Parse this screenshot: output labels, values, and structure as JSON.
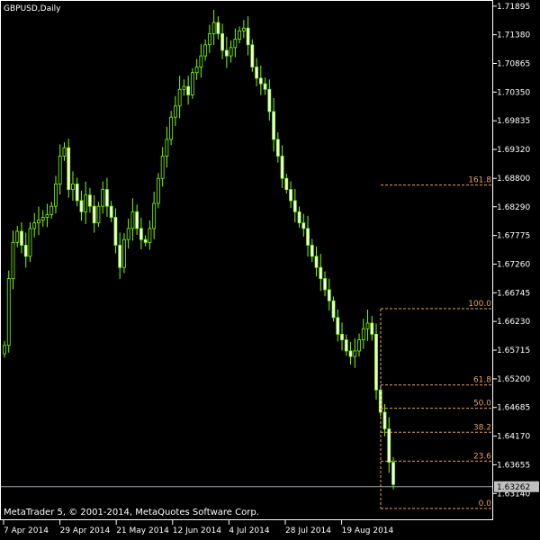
{
  "window": {
    "title": "GBPUSD,Daily"
  },
  "footer": {
    "copyright": "MetaTrader 5, © 2001-2014, MetaQuotes Software Corp."
  },
  "colors": {
    "background": "#000000",
    "candle_up_body": "#000000",
    "candle_down_body": "#ffffff",
    "candle_line": "#7cfc00",
    "fib_line": "#e8a060",
    "axis": "#ffffff",
    "price_line": "#a0a8b0",
    "price_label_bg": "#c0c0c0"
  },
  "chart_data": {
    "type": "candlestick",
    "title": "GBPUSD,Daily",
    "ylim": [
      1.6287,
      1.7194
    ],
    "y_ticks": [
      "1.71895",
      "1.71380",
      "1.70865",
      "1.70350",
      "1.69835",
      "1.69320",
      "1.68800",
      "1.68290",
      "1.67775",
      "1.67260",
      "1.66745",
      "1.66230",
      "1.65715",
      "1.65200",
      "1.64685",
      "1.64170",
      "1.63655",
      "1.63140"
    ],
    "x_ticks": [
      "7 Apr 2014",
      "29 Apr 2014",
      "21 May 2014",
      "12 Jun 2014",
      "4 Jul 2014",
      "28 Jul 2014",
      "19 Aug 2014"
    ],
    "current_price": "1.63262",
    "fibonacci": {
      "levels": [
        {
          "label": "161.8",
          "price": 1.6868
        },
        {
          "label": "100.0",
          "price": 1.6646
        },
        {
          "label": "61.8",
          "price": 1.6509
        },
        {
          "label": "50.0",
          "price": 1.6467
        },
        {
          "label": "38.2",
          "price": 1.6424
        },
        {
          "label": "23.6",
          "price": 1.6372
        },
        {
          "label": "0.0",
          "price": 1.6287
        }
      ]
    },
    "close_path": [
      1.658,
      1.67,
      1.6765,
      1.6785,
      1.676,
      1.674,
      1.679,
      1.68,
      1.6805,
      1.681,
      1.6815,
      1.683,
      1.687,
      1.692,
      1.6935,
      1.686,
      1.687,
      1.684,
      1.682,
      1.685,
      1.683,
      1.68,
      1.683,
      1.686,
      1.683,
      1.681,
      1.676,
      1.672,
      1.677,
      1.679,
      1.682,
      1.679,
      1.677,
      1.6765,
      1.679,
      1.6835,
      1.688,
      1.692,
      1.695,
      1.699,
      1.701,
      1.704,
      1.7045,
      1.703,
      1.707,
      1.708,
      1.71,
      1.712,
      1.714,
      1.716,
      1.714,
      1.711,
      1.71,
      1.7115,
      1.713,
      1.7145,
      1.715,
      1.712,
      1.708,
      1.706,
      1.705,
      1.704,
      1.7,
      1.695,
      1.692,
      1.688,
      1.686,
      1.684,
      1.682,
      1.68,
      1.679,
      1.676,
      1.674,
      1.672,
      1.67,
      1.668,
      1.666,
      1.663,
      1.66,
      1.659,
      1.657,
      1.656,
      1.657,
      1.659,
      1.661,
      1.662,
      1.66,
      1.65,
      1.646,
      1.643,
      1.637,
      1.633
    ]
  }
}
